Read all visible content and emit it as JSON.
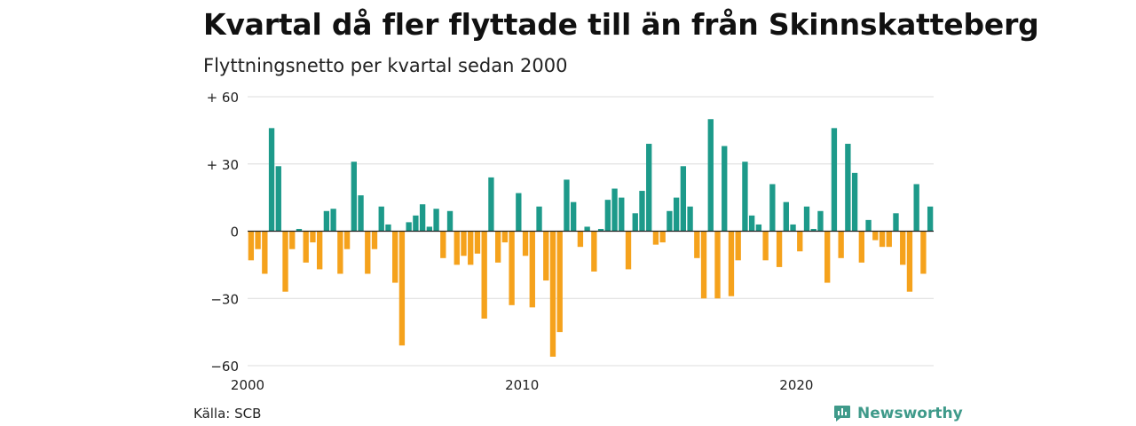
{
  "header": {
    "title": "Kvartal då fler flyttade till än från Skinnskatteberg",
    "subtitle": "Flyttningsnetto per kvartal sedan 2000"
  },
  "footer": {
    "source": "Källa: SCB",
    "brand": "Newsworthy",
    "brand_icon": "newsworthy-logo-icon"
  },
  "colors": {
    "positive": "#1d9a8a",
    "negative": "#f5a21c",
    "grid": "#dcdcdc",
    "axis": "#222222"
  },
  "chart_data": {
    "type": "bar",
    "title": "Kvartal då fler flyttade till än från Skinnskatteberg",
    "subtitle": "Flyttningsnetto per kvartal sedan 2000",
    "xlabel": "",
    "ylabel": "",
    "ylim": [
      -60,
      60
    ],
    "yticks": [
      60,
      30,
      0,
      -30,
      -60
    ],
    "ytick_labels": [
      "+ 60",
      "+ 30",
      "0",
      "−30",
      "−60"
    ],
    "xticks": [
      2000,
      2010,
      2020
    ],
    "xtick_labels": [
      "2000",
      "2010",
      "2020"
    ],
    "start_year": 2000,
    "grid": true,
    "values": [
      -13,
      -8,
      -19,
      46,
      29,
      -27,
      -8,
      1,
      -14,
      -5,
      -17,
      9,
      10,
      -19,
      -8,
      31,
      16,
      -19,
      -8,
      11,
      3,
      -23,
      -51,
      4,
      7,
      12,
      2,
      10,
      -12,
      9,
      -15,
      -11,
      -15,
      -10,
      -39,
      24,
      -14,
      -5,
      -33,
      17,
      -11,
      -34,
      11,
      -22,
      -56,
      -45,
      23,
      13,
      -7,
      2,
      -18,
      1,
      14,
      19,
      15,
      -17,
      8,
      18,
      39,
      -6,
      -5,
      9,
      15,
      29,
      11,
      -12,
      -30,
      50,
      -30,
      38,
      -29,
      -13,
      31,
      7,
      3,
      -13,
      21,
      -16,
      13,
      3,
      -9,
      11,
      1,
      9,
      -23,
      46,
      -12,
      39,
      26,
      -14,
      5,
      -4,
      -7,
      -7,
      8,
      -15,
      -27,
      21,
      -19,
      11
    ]
  }
}
